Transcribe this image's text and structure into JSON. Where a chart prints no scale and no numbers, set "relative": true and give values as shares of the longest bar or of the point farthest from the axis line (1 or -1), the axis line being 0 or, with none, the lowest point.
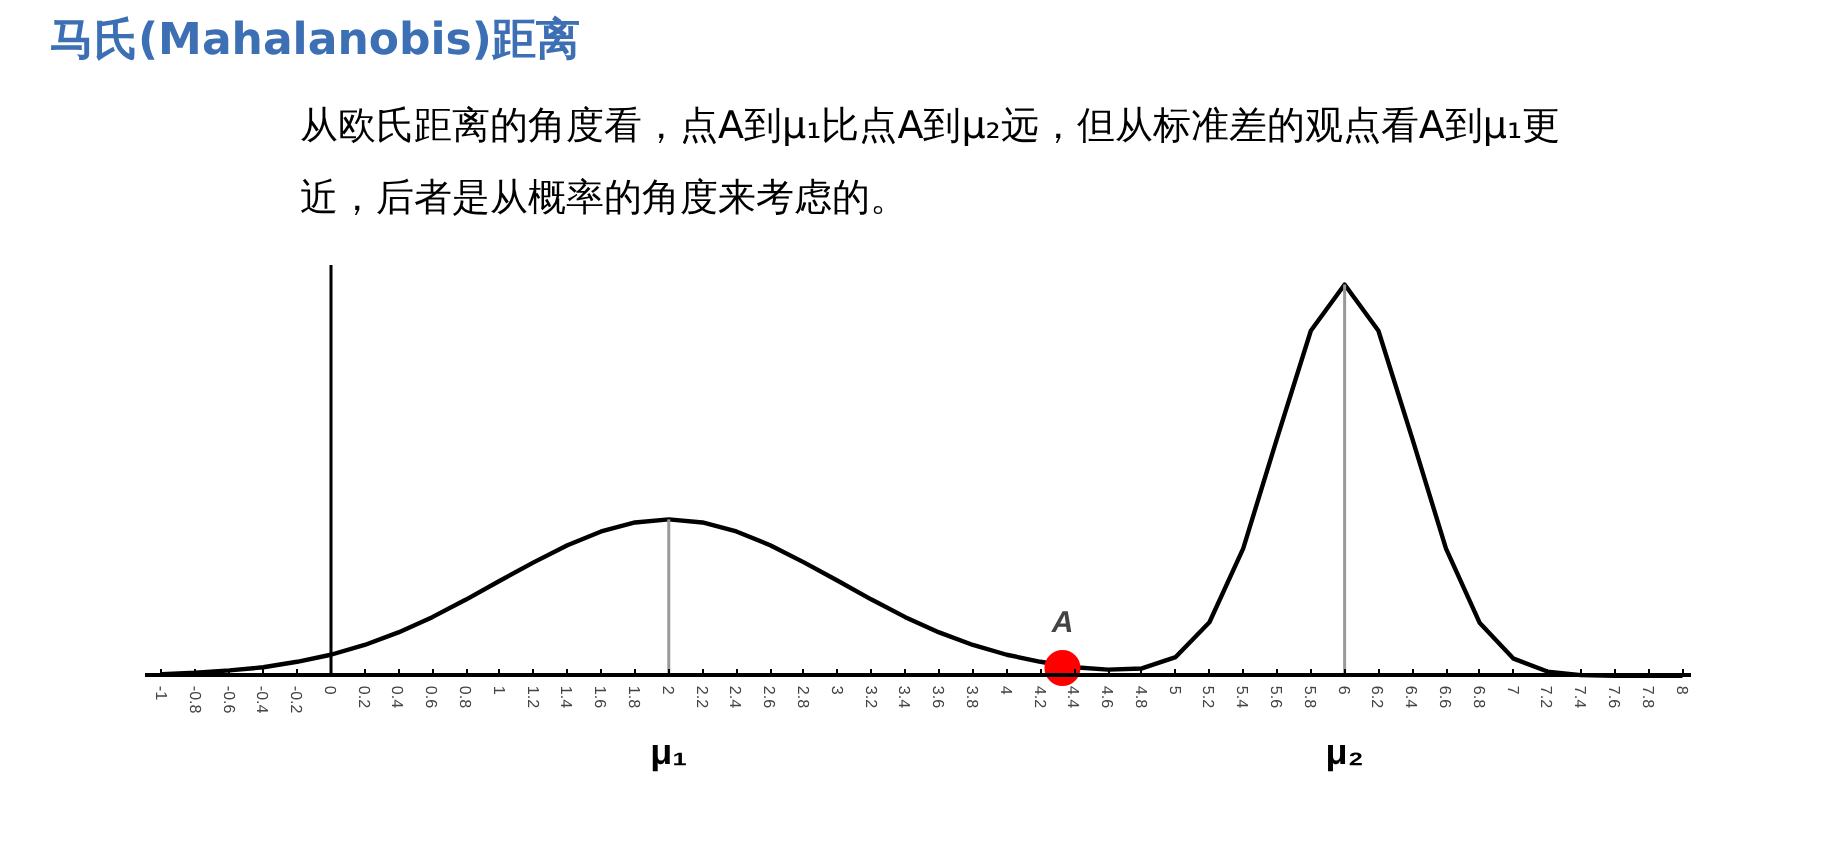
{
  "chart_data": {
    "type": "line",
    "title": "马氏(Mahalanobis)距离",
    "subtitle": "从欧氏距离的角度看，点A到μ₁比点A到μ₂远，但从标准差的观点看A到μ₁更近，后者是从概率的角度来考虑的。",
    "relative": true,
    "series": [
      {
        "color": "#000000",
        "x": [
          -1,
          -0.8,
          -0.6,
          -0.4,
          -0.2,
          0,
          0.2,
          0.4,
          0.6,
          0.8,
          1,
          1.2,
          1.4,
          1.6,
          1.8,
          2,
          2.2,
          2.4,
          2.6,
          2.8,
          3,
          3.2,
          3.4,
          3.6,
          3.8,
          4,
          4.2,
          4.4,
          4.6,
          4.8,
          5,
          5.2,
          5.4,
          5.6,
          5.8,
          6,
          6.2,
          6.4,
          6.6,
          6.8,
          7,
          7.2,
          7.4,
          7.6,
          7.8,
          8
        ],
        "values": [
          0.004,
          0.008,
          0.014,
          0.022,
          0.036,
          0.054,
          0.079,
          0.111,
          0.15,
          0.195,
          0.243,
          0.29,
          0.334,
          0.369,
          0.392,
          0.4,
          0.392,
          0.369,
          0.334,
          0.29,
          0.243,
          0.195,
          0.15,
          0.111,
          0.079,
          0.054,
          0.036,
          0.022,
          0.016,
          0.019,
          0.048,
          0.137,
          0.326,
          0.607,
          0.882,
          1,
          0.882,
          0.607,
          0.325,
          0.135,
          0.044,
          0.011,
          0.002,
          0,
          0,
          0
        ]
      },
      {
        "type": "scatter",
        "name": "A",
        "marker": "circle",
        "color": "#ff0000",
        "x": [
          4.33
        ],
        "values": [
          0.02
        ]
      }
    ],
    "xlim": [
      -1.1,
      8.05
    ],
    "xticks": [
      -1,
      -0.8,
      -0.6,
      -0.4,
      -0.2,
      0,
      0.2,
      0.4,
      0.6,
      0.8,
      1,
      1.2,
      1.4,
      1.6,
      1.8,
      2,
      2.2,
      2.4,
      2.6,
      2.8,
      3,
      3.2,
      3.4,
      3.6,
      3.8,
      4,
      4.2,
      4.4,
      4.6,
      4.8,
      5,
      5.2,
      5.4,
      5.6,
      5.8,
      6,
      6.2,
      6.4,
      6.6,
      6.8,
      7,
      7.2,
      7.4,
      7.6,
      7.8,
      8
    ],
    "ref_lines": [
      {
        "axis": "x",
        "value": 2,
        "label": "μ₁",
        "color": "#999999"
      },
      {
        "axis": "x",
        "value": 6,
        "label": "μ₂",
        "color": "#999999"
      }
    ],
    "grid": false
  }
}
